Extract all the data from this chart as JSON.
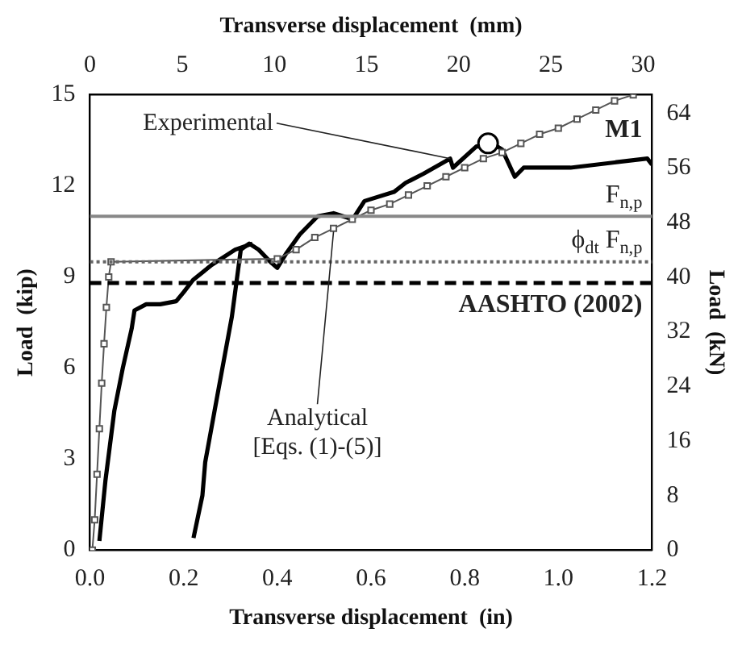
{
  "chart_data": {
    "type": "line",
    "xlabel": "Transverse displacement  (in)",
    "ylabel": "Load  (kip)",
    "y2label": "Load  (kN)",
    "x2label": "Transverse displacement  (mm)",
    "xlim": [
      0,
      1.2
    ],
    "xticks": [
      {
        "value": 0,
        "label": "0.0"
      },
      {
        "value": 0.2,
        "label": "0.2"
      },
      {
        "value": 0.4,
        "label": "0.4"
      },
      {
        "value": 0.6,
        "label": "0.6"
      },
      {
        "value": 0.8,
        "label": "0.8"
      },
      {
        "value": 1.0,
        "label": "1.0"
      },
      {
        "value": 1.2,
        "label": "1.2"
      }
    ],
    "x2lim": [
      0,
      30.48
    ],
    "x2ticks": [
      0,
      5,
      10,
      15,
      20,
      25,
      30
    ],
    "ylim": [
      0,
      15
    ],
    "yticks": [
      0,
      3,
      6,
      9,
      12,
      15
    ],
    "y2lim": [
      0,
      66.72
    ],
    "y2ticks": [
      0,
      8,
      16,
      24,
      32,
      40,
      48,
      56,
      64
    ],
    "grid": false,
    "legend": false,
    "series": [
      {
        "color": "#000000",
        "marker": "none",
        "x": [
          0.02,
          0.033,
          0.052,
          0.07,
          0.089,
          0.095,
          0.12,
          0.15,
          0.184,
          0.2,
          0.22,
          0.26,
          0.31,
          0.347
        ],
        "values": [
          0.3,
          2.3,
          4.6,
          6.0,
          7.3,
          7.9,
          8.1,
          8.1,
          8.2,
          8.5,
          8.9,
          9.4,
          9.9,
          10.1
        ]
      },
      {
        "color": "#000000",
        "marker": "none",
        "x": [
          0.221,
          0.24,
          0.246,
          0.272,
          0.303,
          0.322,
          0.34,
          0.36,
          0.385,
          0.4,
          0.42,
          0.448,
          0.486,
          0.52,
          0.561,
          0.586,
          0.649,
          0.674,
          0.712,
          0.769,
          0.775,
          0.825,
          0.869,
          0.88,
          0.907,
          0.926,
          1.026,
          1.19,
          1.2
        ],
        "values": [
          0.4,
          1.8,
          2.9,
          5.1,
          7.7,
          9.9,
          10.1,
          9.9,
          9.5,
          9.3,
          9.8,
          10.4,
          11.0,
          11.1,
          10.9,
          11.5,
          11.8,
          12.1,
          12.4,
          12.9,
          12.6,
          13.3,
          13.3,
          13.2,
          12.3,
          12.6,
          12.6,
          12.9,
          12.7
        ]
      },
      {
        "color": "#555555",
        "marker": "square",
        "x": [
          0.005,
          0.01,
          0.015,
          0.02,
          0.025,
          0.03,
          0.035,
          0.04,
          0.045,
          0.4,
          0.44,
          0.48,
          0.52,
          0.56,
          0.6,
          0.64,
          0.68,
          0.72,
          0.76,
          0.8,
          0.84,
          0.88,
          0.92,
          0.96,
          1.0,
          1.04,
          1.08,
          1.12,
          1.16
        ],
        "values": [
          0,
          1,
          2.5,
          4,
          5.5,
          6.8,
          8,
          9,
          9.5,
          9.6,
          9.9,
          10.3,
          10.6,
          10.9,
          11.2,
          11.4,
          11.7,
          12,
          12.3,
          12.6,
          12.9,
          13.1,
          13.4,
          13.7,
          13.9,
          14.2,
          14.5,
          14.8,
          15
        ]
      },
      {
        "type": "scatter",
        "color": "#000000",
        "marker": "circle",
        "x": [
          0.85
        ],
        "values": [
          13.4
        ]
      }
    ],
    "ref_lines": [
      {
        "axis": "y",
        "value": 11.0,
        "label": "F$_{n,p}$",
        "color": "#888888",
        "line_style": "solid"
      },
      {
        "axis": "y",
        "value": 9.5,
        "label": "ϕ$_{dt}$ F$_{n,p}$",
        "color": "#666666",
        "line_style": "dotted"
      },
      {
        "axis": "y",
        "value": 8.8,
        "label": "AASHTO (2002)",
        "color": "#000000",
        "line_style": "dashed"
      }
    ],
    "annotations": [
      {
        "text": "Experimental",
        "x": 0.769,
        "y": 12.9
      },
      {
        "text": "Analytical [Eqs. (1)-(5)]",
        "x": 0.52,
        "y": 10.6
      },
      "M1"
    ]
  }
}
